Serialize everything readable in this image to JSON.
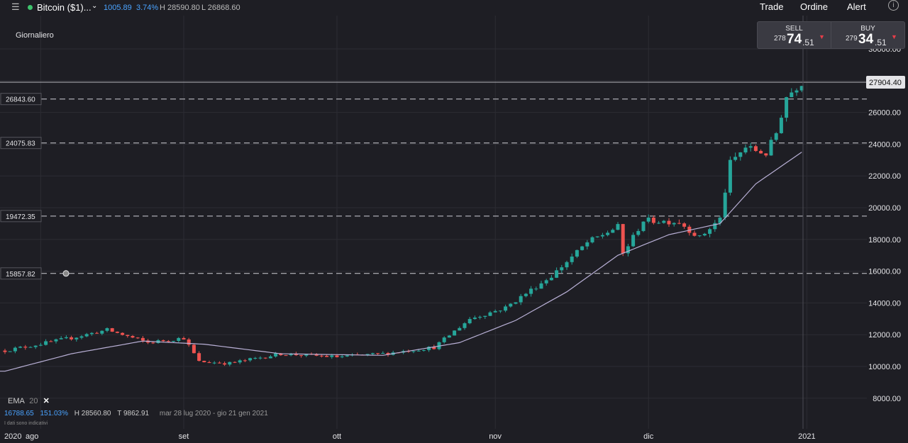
{
  "header": {
    "instrument": "Bitcoin ($1)...",
    "change": "1005.89",
    "change_pct": "3.74%",
    "high": "H 28590.80",
    "low": "L 26868.60",
    "nav": {
      "trade": "Trade",
      "order": "Ordine",
      "alert": "Alert"
    }
  },
  "period_label": "Giornaliero",
  "trade_panel": {
    "sell": {
      "label": "SELL",
      "prefix": "278",
      "big": "74",
      "suffix": ".51"
    },
    "buy": {
      "label": "BUY",
      "prefix": "279",
      "big": "34",
      "suffix": ".51"
    }
  },
  "indicator": {
    "name": "EMA",
    "period": "20",
    "value": "16788.65",
    "change_pct": "151.03%",
    "high": "H 28560.80",
    "target": "T 9862.91",
    "range": "mar 28 lug 2020 - gio 21 gen 2021",
    "disclaimer": "I dati sono indicativi"
  },
  "colors": {
    "up": "#26a69a",
    "down": "#ef5350",
    "ema": "#b9b0d6",
    "background": "#1e1e24",
    "accent": "#4aa3ff"
  },
  "chart_data": {
    "type": "candlestick",
    "title": "",
    "ylim": [
      7000,
      32000
    ],
    "y_ticks": [
      "8000.00",
      "10000.00",
      "12000.00",
      "14000.00",
      "16000.00",
      "18000.00",
      "20000.00",
      "22000.00",
      "24000.00",
      "26000.00",
      "28000.00",
      "30000.00"
    ],
    "x_ticks": [
      "2020",
      "ago",
      "set",
      "ott",
      "nov",
      "dic",
      "2021"
    ],
    "current_price": 27904.4,
    "current_price_label": "27904.40",
    "horizontal_lines": [
      {
        "value": 26843.6,
        "label": "26843.60"
      },
      {
        "value": 24075.83,
        "label": "24075.83"
      },
      {
        "value": 19472.35,
        "label": "19472.35"
      },
      {
        "value": 15857.82,
        "label": "15857.82"
      }
    ],
    "anchor_points": [
      [
        "2020-07-28",
        11000
      ],
      [
        "2020-08-02",
        11300
      ],
      [
        "2020-08-10",
        11800
      ],
      [
        "2020-08-17",
        12300
      ],
      [
        "2020-08-25",
        11500
      ],
      [
        "2020-09-01",
        11800
      ],
      [
        "2020-09-04",
        10300
      ],
      [
        "2020-09-10",
        10200
      ],
      [
        "2020-09-20",
        10800
      ],
      [
        "2020-10-01",
        10600
      ],
      [
        "2020-10-10",
        10800
      ],
      [
        "2020-10-20",
        11200
      ],
      [
        "2020-10-27",
        13000
      ],
      [
        "2020-11-03",
        13700
      ],
      [
        "2020-11-07",
        14600
      ],
      [
        "2020-11-12",
        15700
      ],
      [
        "2020-11-19",
        17800
      ],
      [
        "2020-11-25",
        18800
      ],
      [
        "2020-11-26",
        17100
      ],
      [
        "2020-11-30",
        19200
      ],
      [
        "2020-12-07",
        19100
      ],
      [
        "2020-12-11",
        18100
      ],
      [
        "2020-12-15",
        19300
      ],
      [
        "2020-12-17",
        22800
      ],
      [
        "2020-12-20",
        23800
      ],
      [
        "2020-12-24",
        23400
      ],
      [
        "2020-12-26",
        24700
      ],
      [
        "2020-12-28",
        27000
      ],
      [
        "2020-12-31",
        27904
      ]
    ],
    "ema_anchor_points": [
      [
        "2020-07-28",
        9700
      ],
      [
        "2020-08-10",
        10800
      ],
      [
        "2020-08-24",
        11600
      ],
      [
        "2020-09-05",
        11400
      ],
      [
        "2020-09-20",
        10800
      ],
      [
        "2020-10-10",
        10700
      ],
      [
        "2020-10-25",
        11500
      ],
      [
        "2020-11-05",
        12900
      ],
      [
        "2020-11-15",
        14700
      ],
      [
        "2020-11-25",
        17000
      ],
      [
        "2020-12-05",
        18300
      ],
      [
        "2020-12-15",
        19000
      ],
      [
        "2020-12-22",
        21500
      ],
      [
        "2020-12-31",
        23500
      ]
    ]
  }
}
